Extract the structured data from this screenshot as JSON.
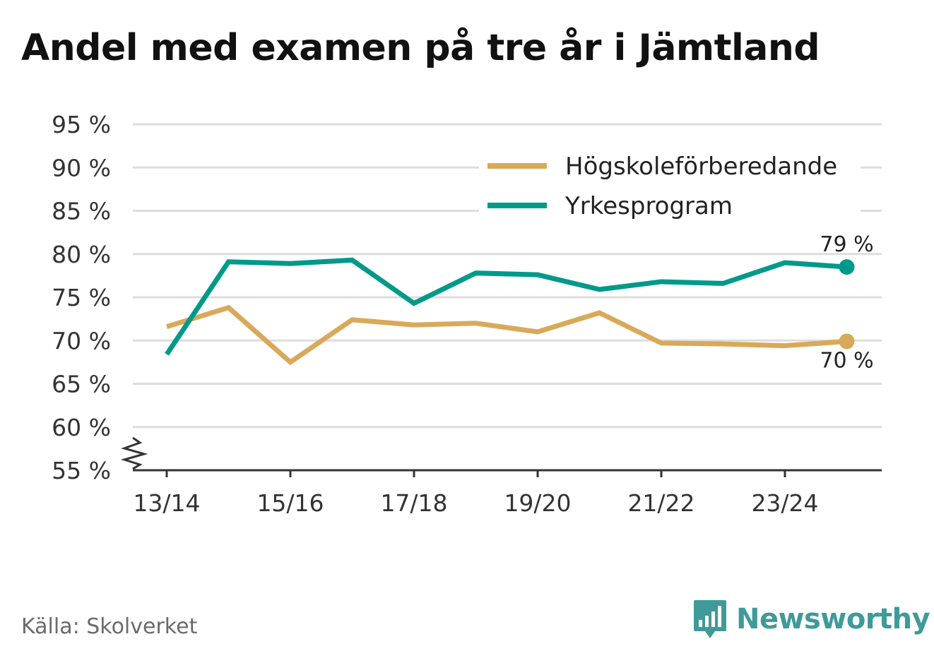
{
  "chart_data": {
    "type": "line",
    "title": "Andel med examen på tre år i Jämtland",
    "x": [
      "13/14",
      "14/15",
      "15/16",
      "16/17",
      "17/18",
      "18/19",
      "19/20",
      "20/21",
      "21/22",
      "22/23",
      "23/24",
      "24/25"
    ],
    "x_tick_labels": [
      "13/14",
      "15/16",
      "17/18",
      "19/20",
      "21/22",
      "23/24"
    ],
    "y_tick_labels": [
      "95 %",
      "90 %",
      "85 %",
      "80 %",
      "75 %",
      "70 %",
      "65 %",
      "60 %",
      "55 %"
    ],
    "y_ticks": [
      95,
      90,
      85,
      80,
      75,
      70,
      65,
      60,
      55
    ],
    "ylim": [
      55,
      95
    ],
    "y_axis_break": true,
    "grid": true,
    "legend_position": "top-right",
    "series": [
      {
        "name": "Högskoleförberedande",
        "color": "#d9a95a",
        "values": [
          71.6,
          73.8,
          67.5,
          72.4,
          71.8,
          72.0,
          71.0,
          73.2,
          69.7,
          69.6,
          69.4,
          69.9
        ],
        "end_label": "70 %"
      },
      {
        "name": "Yrkesprogram",
        "color": "#00998a",
        "values": [
          68.4,
          79.1,
          78.9,
          79.3,
          74.3,
          77.8,
          77.6,
          75.9,
          76.8,
          76.6,
          79.0,
          78.5
        ],
        "end_label": "79 %"
      }
    ]
  },
  "footer": {
    "source": "Källa: Skolverket",
    "brand": "Newsworthy",
    "brand_icon": "bar-chart-icon"
  },
  "colors": {
    "grid": "#dddddd",
    "axis": "#333333",
    "brand": "#3f9a9a"
  }
}
